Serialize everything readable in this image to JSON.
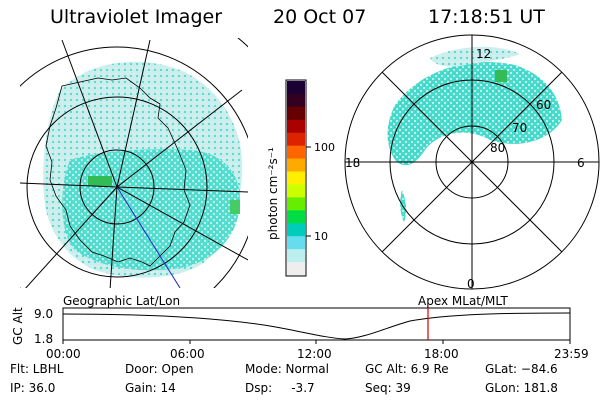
{
  "header": {
    "instrument": "Ultraviolet Imager",
    "date": "20 Oct 07",
    "time": "17:18:51 UT"
  },
  "geo_panel": {
    "label": "Geographic Lat/Lon"
  },
  "mag_panel": {
    "label": "Apex  MLat/MLT",
    "mlt_labels": {
      "top": "12",
      "bottom": "0",
      "left": "18",
      "right": "6"
    },
    "mlat_labels": [
      "60",
      "70",
      "80"
    ]
  },
  "colorbar": {
    "unit_label": "photon cm⁻²s⁻¹",
    "ticks": [
      "100",
      "10"
    ],
    "colors": [
      "#1a0033",
      "#330022",
      "#660000",
      "#aa0000",
      "#dd2200",
      "#ff6600",
      "#ffaa00",
      "#ffee00",
      "#ccff00",
      "#66ee00",
      "#00dd44",
      "#00ccbb",
      "#66ddee",
      "#bbeeee",
      "#eeeeee"
    ]
  },
  "altitude_plot": {
    "ylabel": "GC Alt",
    "yticks": [
      "9.0",
      "1.8"
    ],
    "xticks": [
      "00:00",
      "06:00",
      "12:00",
      "18:00",
      "23:59"
    ],
    "marker_color": "#dd0000"
  },
  "info": {
    "flt": "Flt: LBHL",
    "ip": "IP: 36.0",
    "door": "Door: Open",
    "gain": "Gain: 14",
    "mode": "Mode: Normal",
    "dsp": "Dsp:     -3.7",
    "gc_alt": "GC Alt: 6.9 Re",
    "seq": "Seq: 39",
    "glat": "GLat: −84.6",
    "glon": "GLon: 181.8"
  }
}
